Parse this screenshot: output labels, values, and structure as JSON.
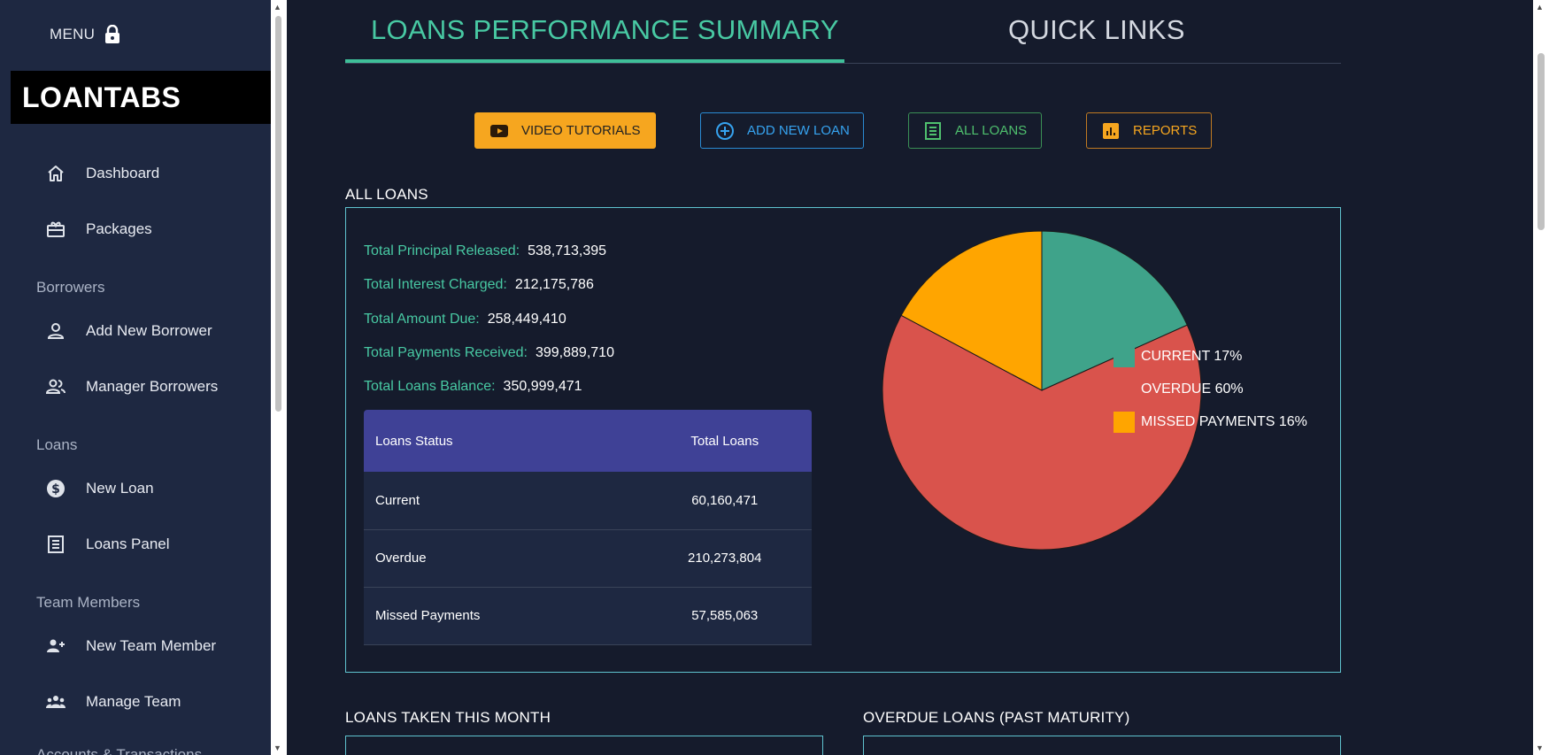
{
  "sidebar": {
    "menu_label": "MENU",
    "brand": "LOANTABS",
    "items": [
      {
        "label": "Dashboard",
        "icon": "home-icon"
      },
      {
        "label": "Packages",
        "icon": "package-icon"
      },
      {
        "label": "Add New Borrower",
        "icon": "person-icon"
      },
      {
        "label": "Manager Borrowers",
        "icon": "people-icon"
      },
      {
        "label": "New Loan",
        "icon": "dollar-icon"
      },
      {
        "label": "Loans Panel",
        "icon": "list-icon"
      },
      {
        "label": "New Team Member",
        "icon": "add-person-icon"
      },
      {
        "label": "Manage Team",
        "icon": "team-icon"
      }
    ],
    "sections": [
      "Borrowers",
      "Loans",
      "Team Members",
      "Accounts & Transactions"
    ]
  },
  "tabs": {
    "performance": "LOANS PERFORMANCE SUMMARY",
    "quick_links": "QUICK LINKS"
  },
  "buttons": {
    "video": "VIDEO TUTORIALS",
    "add_loan": "ADD NEW LOAN",
    "all_loans": "ALL LOANS",
    "reports": "REPORTS"
  },
  "all_loans": {
    "title": "ALL LOANS",
    "stats": [
      {
        "label": "Total Principal Released:",
        "value": "538,713,395"
      },
      {
        "label": "Total Interest Charged:",
        "value": "212,175,786"
      },
      {
        "label": "Total Amount Due:",
        "value": "258,449,410"
      },
      {
        "label": "Total Payments Received:",
        "value": "399,889,710"
      },
      {
        "label": "Total Loans Balance:",
        "value": "350,999,471"
      }
    ],
    "table": {
      "headers": [
        "Loans Status",
        "Total Loans"
      ],
      "rows": [
        [
          "Current",
          "60,160,471"
        ],
        [
          "Overdue",
          "210,273,804"
        ],
        [
          "Missed Payments",
          "57,585,063"
        ]
      ]
    }
  },
  "chart_data": {
    "type": "pie",
    "legend_position": "right",
    "slices": [
      {
        "label": "CURRENT 17%",
        "value": 17,
        "color": "#3fa38a"
      },
      {
        "label": "OVERDUE 60%",
        "value": 60,
        "color": "#d9534c"
      },
      {
        "label": "MISSED PAYMENTS 16%",
        "value": 16,
        "color": "#ffa500"
      }
    ]
  },
  "bottom": {
    "taken_title": "LOANS TAKEN THIS MONTH",
    "overdue_title": "OVERDUE LOANS (PAST MATURITY)"
  },
  "colors": {
    "accent": "#48c9a3",
    "sidebar": "#1e2841",
    "background": "#151b2c",
    "table_header": "#3f4196"
  }
}
